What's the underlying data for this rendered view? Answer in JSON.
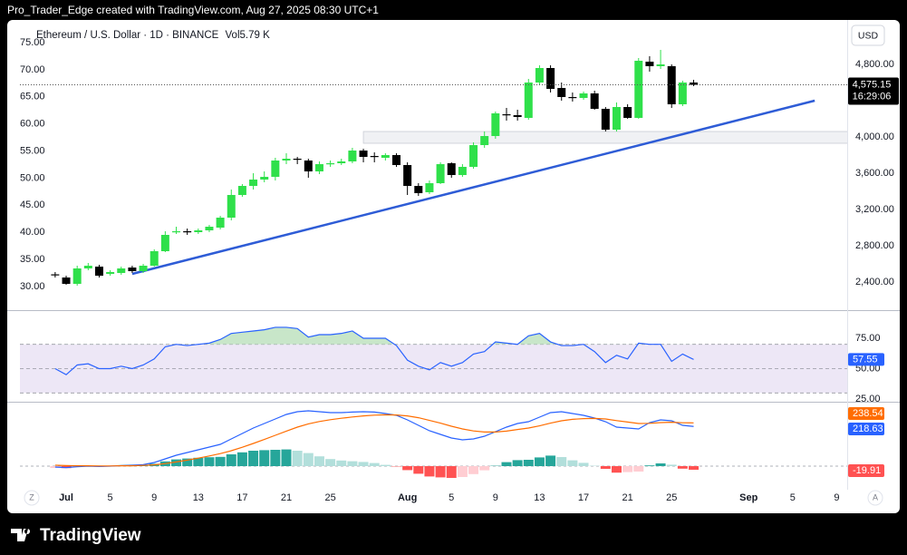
{
  "header": {
    "text": "Pro_Trader_Edge created with TradingView.com, Aug 27, 2025 08:30 UTC+1"
  },
  "footer": {
    "brand": "TradingView"
  },
  "chart_data": [
    {
      "type": "candlestick",
      "title": "Ethereum / U.S. Dollar · 1D · BINANCE",
      "volume_label": "Vol",
      "volume_value": "5.79 K",
      "currency": "USD",
      "x": [
        -1,
        0,
        1,
        2,
        3,
        4,
        5,
        6,
        7,
        8,
        9,
        10,
        11,
        12,
        13,
        14,
        15,
        16,
        17,
        18,
        19,
        20,
        21,
        22,
        23,
        24,
        25,
        26,
        27,
        28,
        29,
        30,
        31,
        32,
        33,
        34,
        35,
        36,
        37,
        38,
        39,
        40,
        41,
        42,
        43,
        44,
        45,
        46,
        47,
        48,
        49,
        50,
        51,
        52,
        53,
        54,
        55,
        56,
        57
      ],
      "open": [
        2485,
        2450,
        2380,
        2550,
        2570,
        2490,
        2500,
        2560,
        2520,
        2580,
        2740,
        2950,
        2960,
        2950,
        2970,
        3000,
        3110,
        3360,
        3460,
        3530,
        3560,
        3740,
        3760,
        3740,
        3620,
        3700,
        3710,
        3730,
        3850,
        3790,
        3770,
        3800,
        3690,
        3460,
        3390,
        3490,
        3710,
        3580,
        3670,
        3910,
        4010,
        4250,
        4240,
        4210,
        4600,
        4760,
        4540,
        4440,
        4430,
        4480,
        4310,
        4080,
        4330,
        4210,
        4830,
        4780,
        4780,
        4360,
        4600
      ],
      "high": [
        2510,
        2470,
        2580,
        2610,
        2590,
        2530,
        2570,
        2580,
        2600,
        2760,
        2960,
        3010,
        2990,
        2990,
        3030,
        3130,
        3420,
        3480,
        3600,
        3620,
        3770,
        3820,
        3780,
        3760,
        3730,
        3740,
        3760,
        3880,
        3870,
        3830,
        3820,
        3820,
        3720,
        3490,
        3520,
        3720,
        3720,
        3700,
        3940,
        4060,
        4280,
        4320,
        4300,
        4640,
        4790,
        4790,
        4600,
        4490,
        4500,
        4510,
        4330,
        4380,
        4360,
        4870,
        4890,
        4960,
        4800,
        4620,
        4630
      ],
      "low": [
        2450,
        2370,
        2360,
        2530,
        2450,
        2470,
        2480,
        2500,
        2500,
        2570,
        2730,
        2930,
        2920,
        2930,
        2950,
        2980,
        3080,
        3340,
        3420,
        3500,
        3520,
        3700,
        3700,
        3550,
        3590,
        3670,
        3690,
        3710,
        3720,
        3720,
        3740,
        3670,
        3360,
        3350,
        3370,
        3480,
        3550,
        3560,
        3650,
        3880,
        3980,
        4180,
        4180,
        4190,
        4580,
        4490,
        4400,
        4390,
        4410,
        4300,
        4060,
        4060,
        4200,
        4200,
        4720,
        4750,
        4320,
        4340,
        4560
      ],
      "close": [
        2475,
        2380,
        2550,
        2580,
        2470,
        2510,
        2550,
        2520,
        2580,
        2740,
        2920,
        2960,
        2950,
        2970,
        3010,
        3110,
        3360,
        3460,
        3530,
        3560,
        3740,
        3760,
        3750,
        3620,
        3700,
        3710,
        3730,
        3850,
        3780,
        3780,
        3800,
        3690,
        3460,
        3380,
        3490,
        3700,
        3580,
        3670,
        3910,
        4010,
        4260,
        4240,
        4220,
        4600,
        4760,
        4530,
        4440,
        4430,
        4480,
        4310,
        4080,
        4330,
        4210,
        4840,
        4780,
        4800,
        4360,
        4600,
        4575.15
      ],
      "up_color": "#2fe04a",
      "down_color": "#000000",
      "xlim": [
        -4.2,
        70.95
      ],
      "ylim": [
        2090,
        5230
      ],
      "xticks": [
        {
          "value": 0,
          "label": "Jul"
        },
        {
          "value": 4,
          "label": "5"
        },
        {
          "value": 8,
          "label": "9"
        },
        {
          "value": 12,
          "label": "13"
        },
        {
          "value": 16,
          "label": "17"
        },
        {
          "value": 20,
          "label": "21"
        },
        {
          "value": 24,
          "label": "25"
        },
        {
          "value": 31,
          "label": "Aug"
        },
        {
          "value": 35,
          "label": "5"
        },
        {
          "value": 39,
          "label": "9"
        },
        {
          "value": 43,
          "label": "13"
        },
        {
          "value": 47,
          "label": "17"
        },
        {
          "value": 51,
          "label": "21"
        },
        {
          "value": 55,
          "label": "25"
        },
        {
          "value": 62,
          "label": "Sep"
        },
        {
          "value": 66,
          "label": "5"
        },
        {
          "value": 70,
          "label": "9"
        }
      ],
      "yticks": [
        {
          "value": 2400,
          "label": "2,400.00"
        },
        {
          "value": 2800,
          "label": "2,800.00"
        },
        {
          "value": 3200,
          "label": "3,200.00"
        },
        {
          "value": 3600,
          "label": "3,600.00"
        },
        {
          "value": 4000,
          "label": "4,000.00"
        },
        {
          "value": 4800,
          "label": "4,800.00"
        }
      ],
      "y2lim": [
        25.65,
        78.18
      ],
      "y2ticks": [
        {
          "value": 30,
          "label": "30.00"
        },
        {
          "value": 35,
          "label": "35.00"
        },
        {
          "value": 40,
          "label": "40.00"
        },
        {
          "value": 45,
          "label": "45.00"
        },
        {
          "value": 50,
          "label": "50.00"
        },
        {
          "value": 55,
          "label": "55.00"
        },
        {
          "value": 60,
          "label": "60.00"
        },
        {
          "value": 65,
          "label": "65.00"
        },
        {
          "value": 70,
          "label": "70.00"
        },
        {
          "value": 75,
          "label": "75.00"
        }
      ],
      "last_price_label": "4,575.15",
      "countdown": "16:29:06",
      "trendline": {
        "x": [
          6,
          68
        ],
        "y": [
          2490,
          4400
        ],
        "color": "#2e5cd6"
      },
      "zone": {
        "x": [
          27,
          71
        ],
        "y": [
          3930,
          4060
        ]
      },
      "corner_labels": [
        "Z",
        "A"
      ]
    },
    {
      "type": "line",
      "values": [
        50,
        45,
        53,
        54,
        50,
        50,
        52,
        50,
        53,
        58,
        68,
        70,
        69,
        70,
        71,
        74,
        79,
        80,
        81,
        82,
        84,
        84,
        83,
        76,
        78,
        78,
        79,
        81,
        75,
        75,
        75,
        69,
        57,
        52,
        49,
        55,
        52,
        55,
        62,
        64,
        72,
        71,
        70,
        77,
        79,
        72,
        69,
        69,
        70,
        64,
        55,
        61,
        58,
        71,
        70,
        70,
        56,
        62,
        57.55
      ],
      "color": "#2962ff",
      "ylim": [
        23.5,
        97.4
      ],
      "yticks": [
        {
          "value": 25,
          "label": "25.00"
        },
        {
          "value": 50,
          "label": "50.00"
        },
        {
          "value": 75,
          "label": "75.00"
        }
      ],
      "bands": [
        30,
        50,
        70
      ],
      "band_fill": "#ede7f6",
      "overbought_fill": "#c8e6c9"
    },
    {
      "type": "macd",
      "macd": [
        -5,
        -8,
        -3,
        0,
        -2,
        0,
        3,
        5,
        8,
        20,
        40,
        60,
        75,
        90,
        105,
        120,
        150,
        180,
        210,
        235,
        260,
        285,
        300,
        305,
        300,
        295,
        295,
        298,
        300,
        298,
        290,
        280,
        255,
        225,
        195,
        175,
        155,
        145,
        150,
        165,
        190,
        215,
        235,
        245,
        270,
        295,
        300,
        290,
        280,
        265,
        245,
        215,
        210,
        205,
        240,
        255,
        250,
        225,
        218.63
      ],
      "signal": [
        5,
        3,
        2,
        2,
        1,
        1,
        2,
        2,
        4,
        7,
        14,
        23,
        33,
        44,
        56,
        69,
        85,
        104,
        125,
        147,
        170,
        193,
        215,
        233,
        246,
        256,
        264,
        271,
        277,
        281,
        283,
        282,
        277,
        267,
        252,
        237,
        220,
        205,
        194,
        188,
        188,
        193,
        202,
        210,
        222,
        237,
        250,
        258,
        262,
        263,
        260,
        251,
        243,
        235,
        236,
        240,
        242,
        239,
        238.54
      ],
      "histogram": [
        -10,
        -11,
        -5,
        -2,
        -3,
        -1,
        1,
        3,
        4,
        13,
        26,
        37,
        42,
        46,
        49,
        51,
        65,
        76,
        85,
        88,
        90,
        92,
        85,
        72,
        54,
        39,
        31,
        27,
        23,
        17,
        7,
        -2,
        -22,
        -42,
        -57,
        -62,
        -65,
        -60,
        -44,
        -23,
        2,
        22,
        33,
        35,
        48,
        58,
        50,
        32,
        18,
        2,
        -15,
        -36,
        -33,
        -30,
        4,
        15,
        8,
        -14,
        -19.91
      ],
      "macd_color": "#2962ff",
      "signal_color": "#ff6d00",
      "hist_colors": {
        "up_rise": "#26a69a",
        "up_fall": "#b2dfdb",
        "down_fall": "#ff5252",
        "down_rise": "#ffcdd2"
      },
      "ylim": [
        -115,
        350
      ]
    }
  ]
}
